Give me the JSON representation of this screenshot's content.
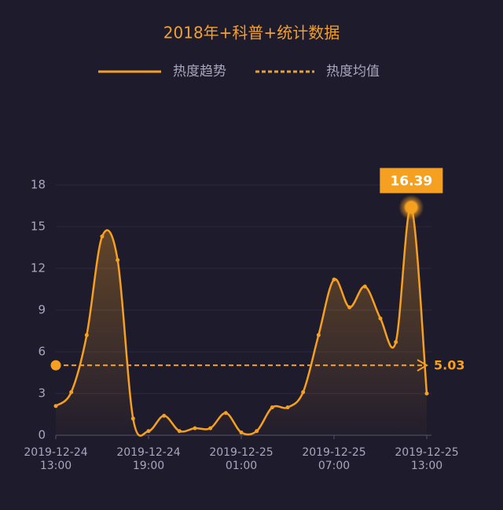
{
  "chart_data": {
    "type": "line",
    "title": "2018年+科普+统计数据",
    "categories": [
      [
        "2019-12-24",
        "13:00"
      ],
      null,
      null,
      null,
      null,
      null,
      [
        "2019-12-24",
        "19:00"
      ],
      null,
      null,
      null,
      null,
      null,
      [
        "2019-12-25",
        "01:00"
      ],
      null,
      null,
      null,
      null,
      null,
      [
        "2019-12-25",
        "07:00"
      ],
      null,
      null,
      null,
      null,
      null,
      [
        "2019-12-25",
        "13:00"
      ]
    ],
    "series": [
      {
        "name": "热度趋势",
        "color": "#f5a020",
        "values": [
          2.1,
          3.1,
          7.2,
          14.3,
          12.6,
          1.2,
          0.3,
          1.4,
          0.3,
          0.5,
          0.5,
          1.6,
          0.2,
          0.3,
          2.0,
          2.0,
          3.1,
          7.2,
          11.2,
          9.2,
          10.7,
          8.4,
          6.7,
          16.39,
          3.0
        ]
      }
    ],
    "mean": {
      "name": "热度均值",
      "value": 5.03
    },
    "ylim": [
      0,
      18
    ],
    "yticks": [
      0,
      3,
      6,
      9,
      12,
      15,
      18
    ],
    "grid": true
  }
}
